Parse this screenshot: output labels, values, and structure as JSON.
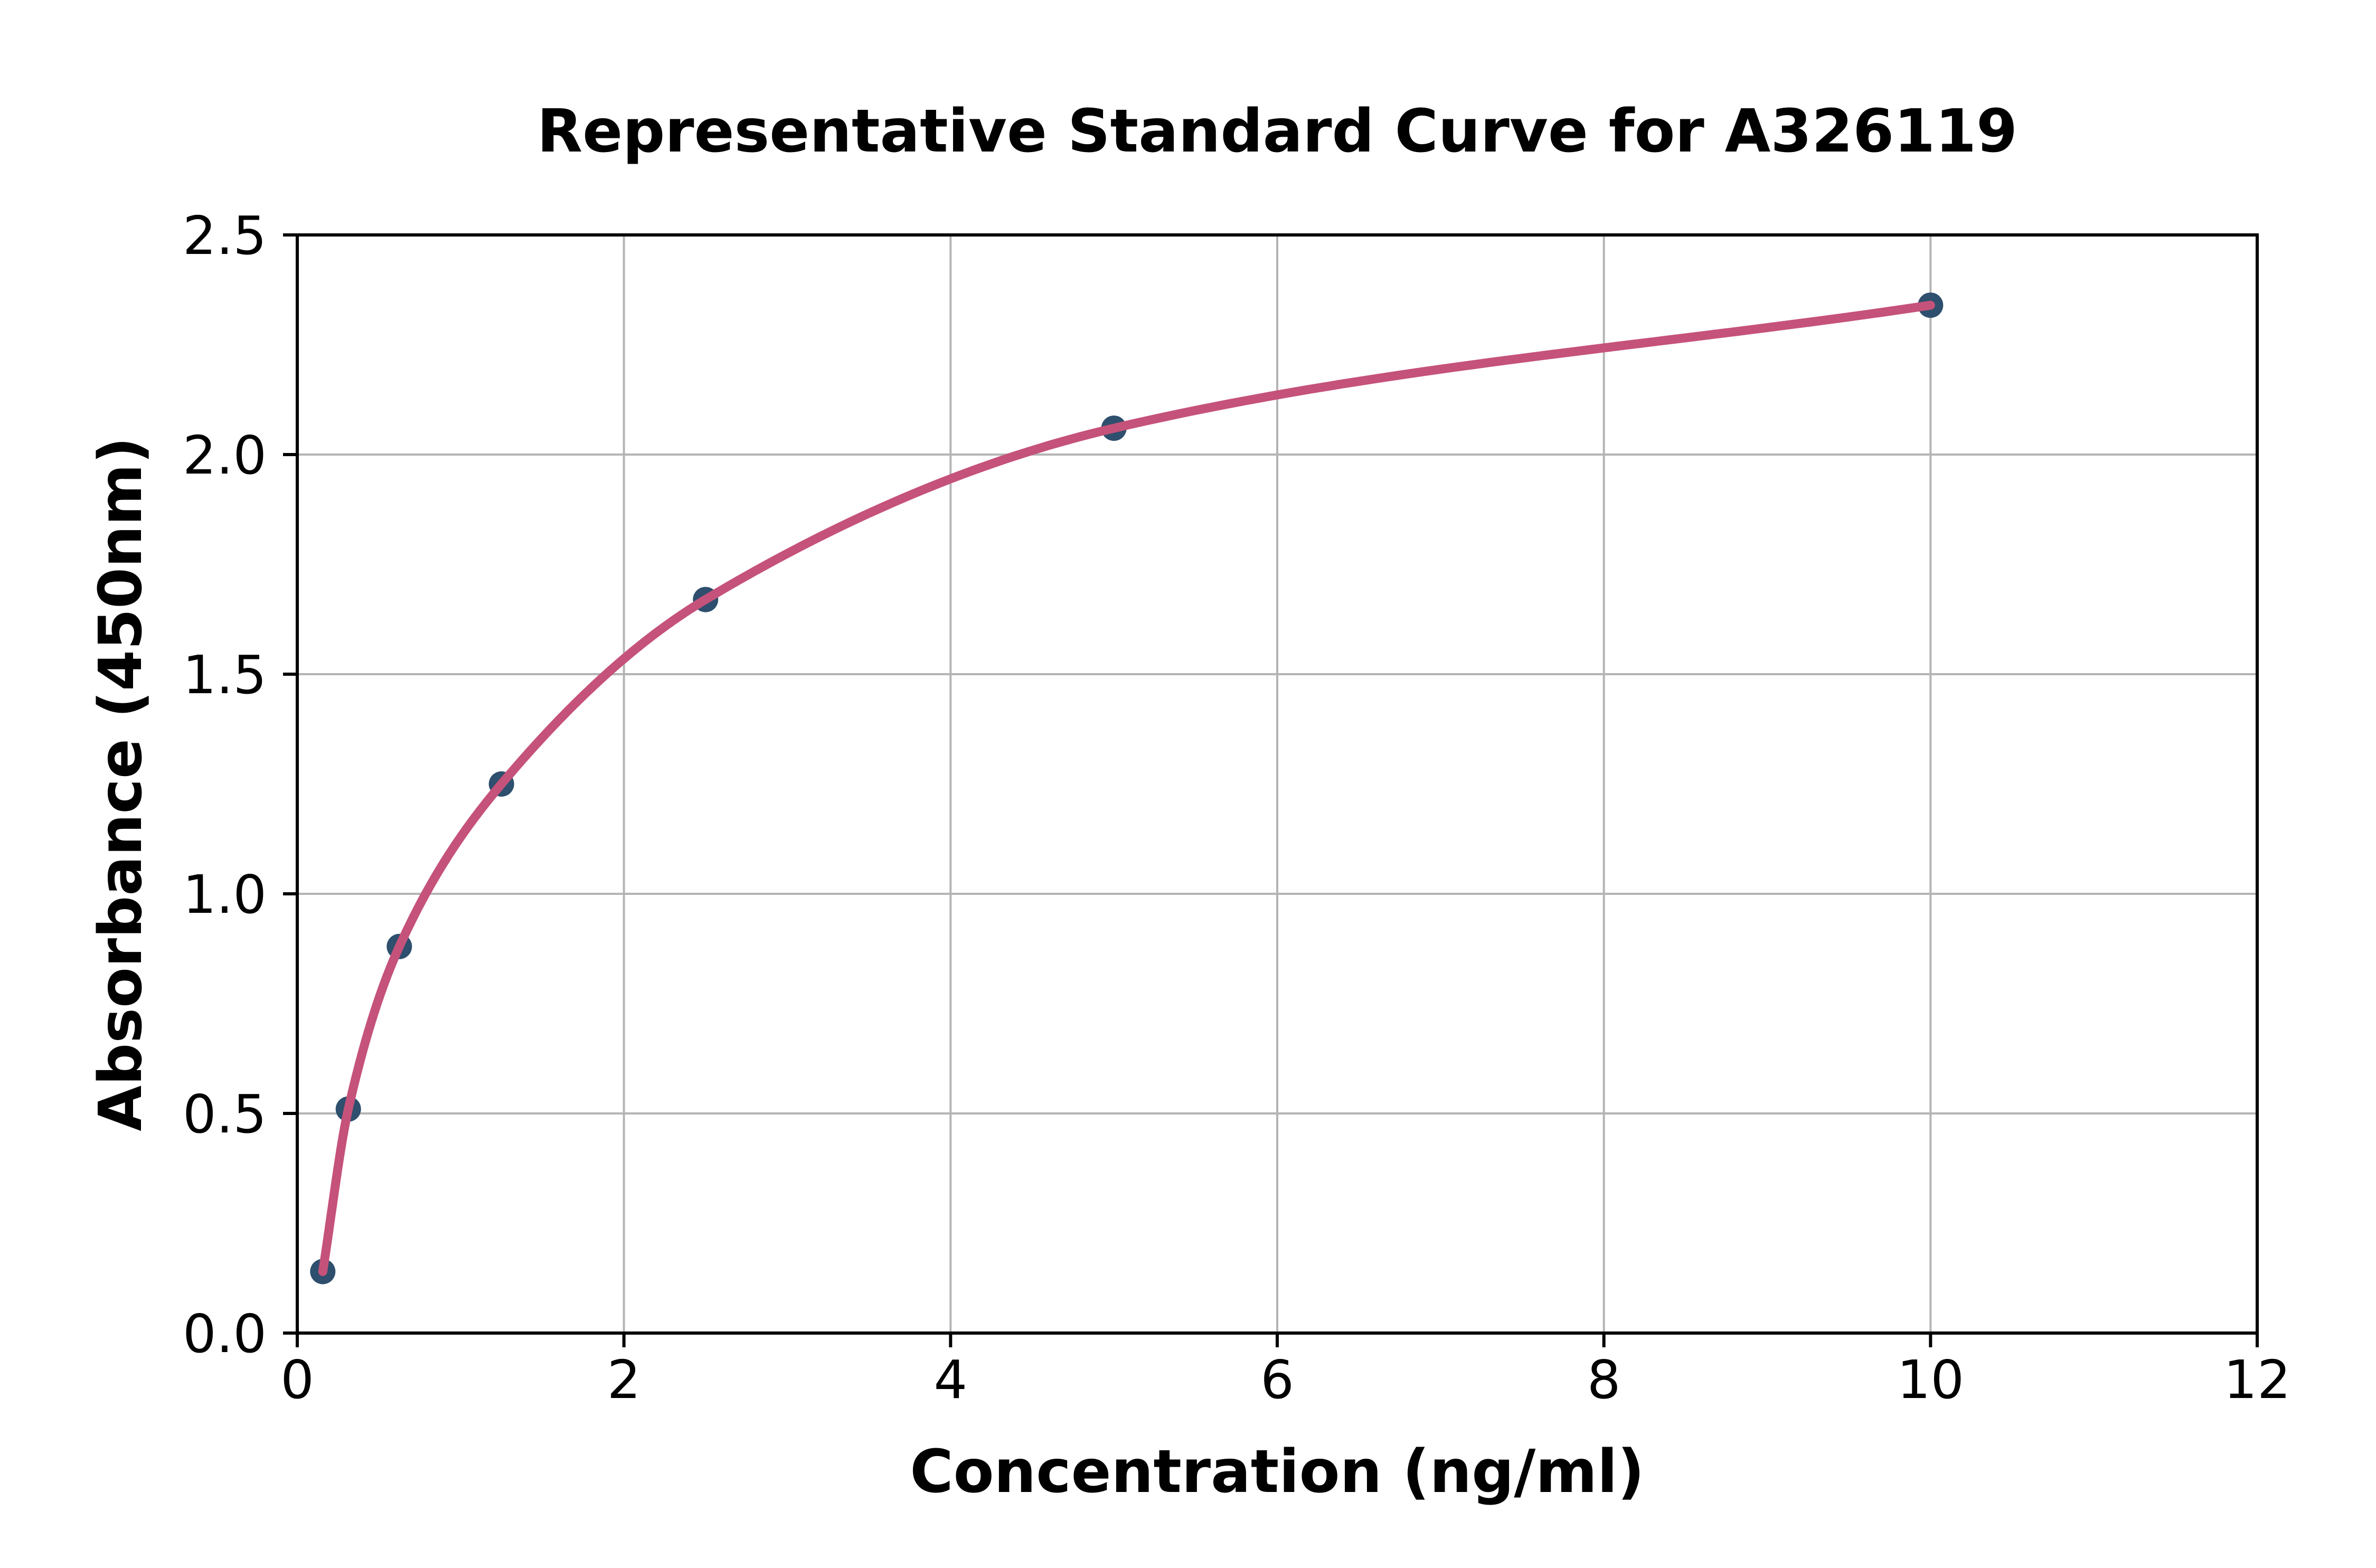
{
  "chart_data": {
    "type": "scatter",
    "title": "Representative Standard Curve for A326119",
    "xlabel": "Concentration (ng/ml)",
    "ylabel": "Absorbance (450nm)",
    "x": [
      0.156,
      0.3125,
      0.625,
      1.25,
      2.5,
      5,
      10
    ],
    "y": [
      0.14,
      0.51,
      0.88,
      1.25,
      1.67,
      2.06,
      2.34
    ],
    "series": [
      {
        "name": "standard-curve",
        "points": [
          {
            "concentration_ng_ml": 0.156,
            "absorbance_450nm": 0.14
          },
          {
            "concentration_ng_ml": 0.3125,
            "absorbance_450nm": 0.51
          },
          {
            "concentration_ng_ml": 0.625,
            "absorbance_450nm": 0.88
          },
          {
            "concentration_ng_ml": 1.25,
            "absorbance_450nm": 1.25
          },
          {
            "concentration_ng_ml": 2.5,
            "absorbance_450nm": 1.67
          },
          {
            "concentration_ng_ml": 5,
            "absorbance_450nm": 2.06
          },
          {
            "concentration_ng_ml": 10,
            "absorbance_450nm": 2.34
          }
        ]
      }
    ],
    "xlim": [
      0,
      12
    ],
    "ylim": [
      0,
      2.5
    ],
    "xticks": {
      "values": [
        0,
        2,
        4,
        6,
        8,
        10,
        12
      ],
      "labels": [
        "0",
        "2",
        "4",
        "6",
        "8",
        "10",
        "12"
      ]
    },
    "yticks": {
      "values": [
        0,
        0.5,
        1,
        1.5,
        2,
        2.5
      ],
      "labels": [
        "0.0",
        "0.5",
        "1.0",
        "1.5",
        "2.0",
        "2.5"
      ]
    },
    "grid": true,
    "legend": "none",
    "colors": {
      "curve": "#c5527a",
      "marker": "#2e4f6d",
      "grid": "#b4b4b4",
      "spine": "#000000",
      "text": "#000000",
      "background": "#ffffff"
    }
  }
}
